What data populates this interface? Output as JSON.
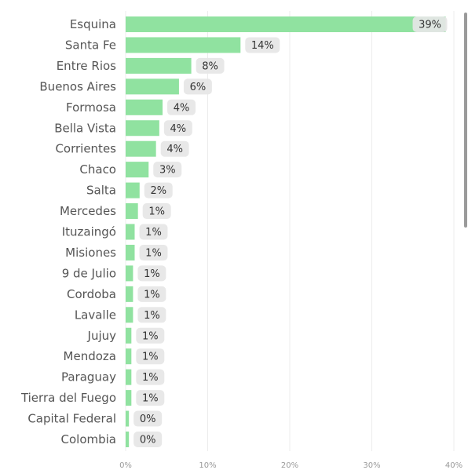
{
  "chart_data": {
    "type": "bar",
    "orientation": "horizontal",
    "categories": [
      "Esquina",
      "Santa Fe",
      "Entre Rios",
      "Buenos Aires",
      "Formosa",
      "Bella Vista",
      "Corrientes",
      "Chaco",
      "Salta",
      "Mercedes",
      "Ituzaingó",
      "Misiones",
      "9 de Julio",
      "Cordoba",
      "Lavalle",
      "Jujuy",
      "Mendoza",
      "Paraguay",
      "Tierra del Fuego",
      "Capital Federal",
      "Colombia"
    ],
    "values": [
      0.39,
      0.14,
      0.08,
      0.065,
      0.045,
      0.041,
      0.037,
      0.028,
      0.017,
      0.015,
      0.011,
      0.011,
      0.009,
      0.009,
      0.009,
      0.007,
      0.007,
      0.007,
      0.007,
      0.004,
      0.004
    ],
    "labels": [
      "39%",
      "14%",
      "8%",
      "6%",
      "4%",
      "4%",
      "4%",
      "3%",
      "2%",
      "1%",
      "1%",
      "1%",
      "1%",
      "1%",
      "1%",
      "1%",
      "1%",
      "1%",
      "1%",
      "0%",
      "0%"
    ],
    "xlim": [
      0,
      0.4
    ],
    "xticks": [
      0,
      0.1,
      0.2,
      0.3,
      0.4
    ],
    "xtick_labels": [
      "0%",
      "10%",
      "20%",
      "30%",
      "40%"
    ],
    "title": "",
    "xlabel": "",
    "ylabel": "",
    "grid": true,
    "legend": "none",
    "colors": {
      "bar": "#90e2a0",
      "label_bg": "#e6e6e6",
      "label_text": "#333333",
      "category_text": "#555555",
      "tick_text": "#999999",
      "gridline": "#ececec"
    }
  },
  "scrollbar": {
    "thumb_fraction": 0.49
  }
}
